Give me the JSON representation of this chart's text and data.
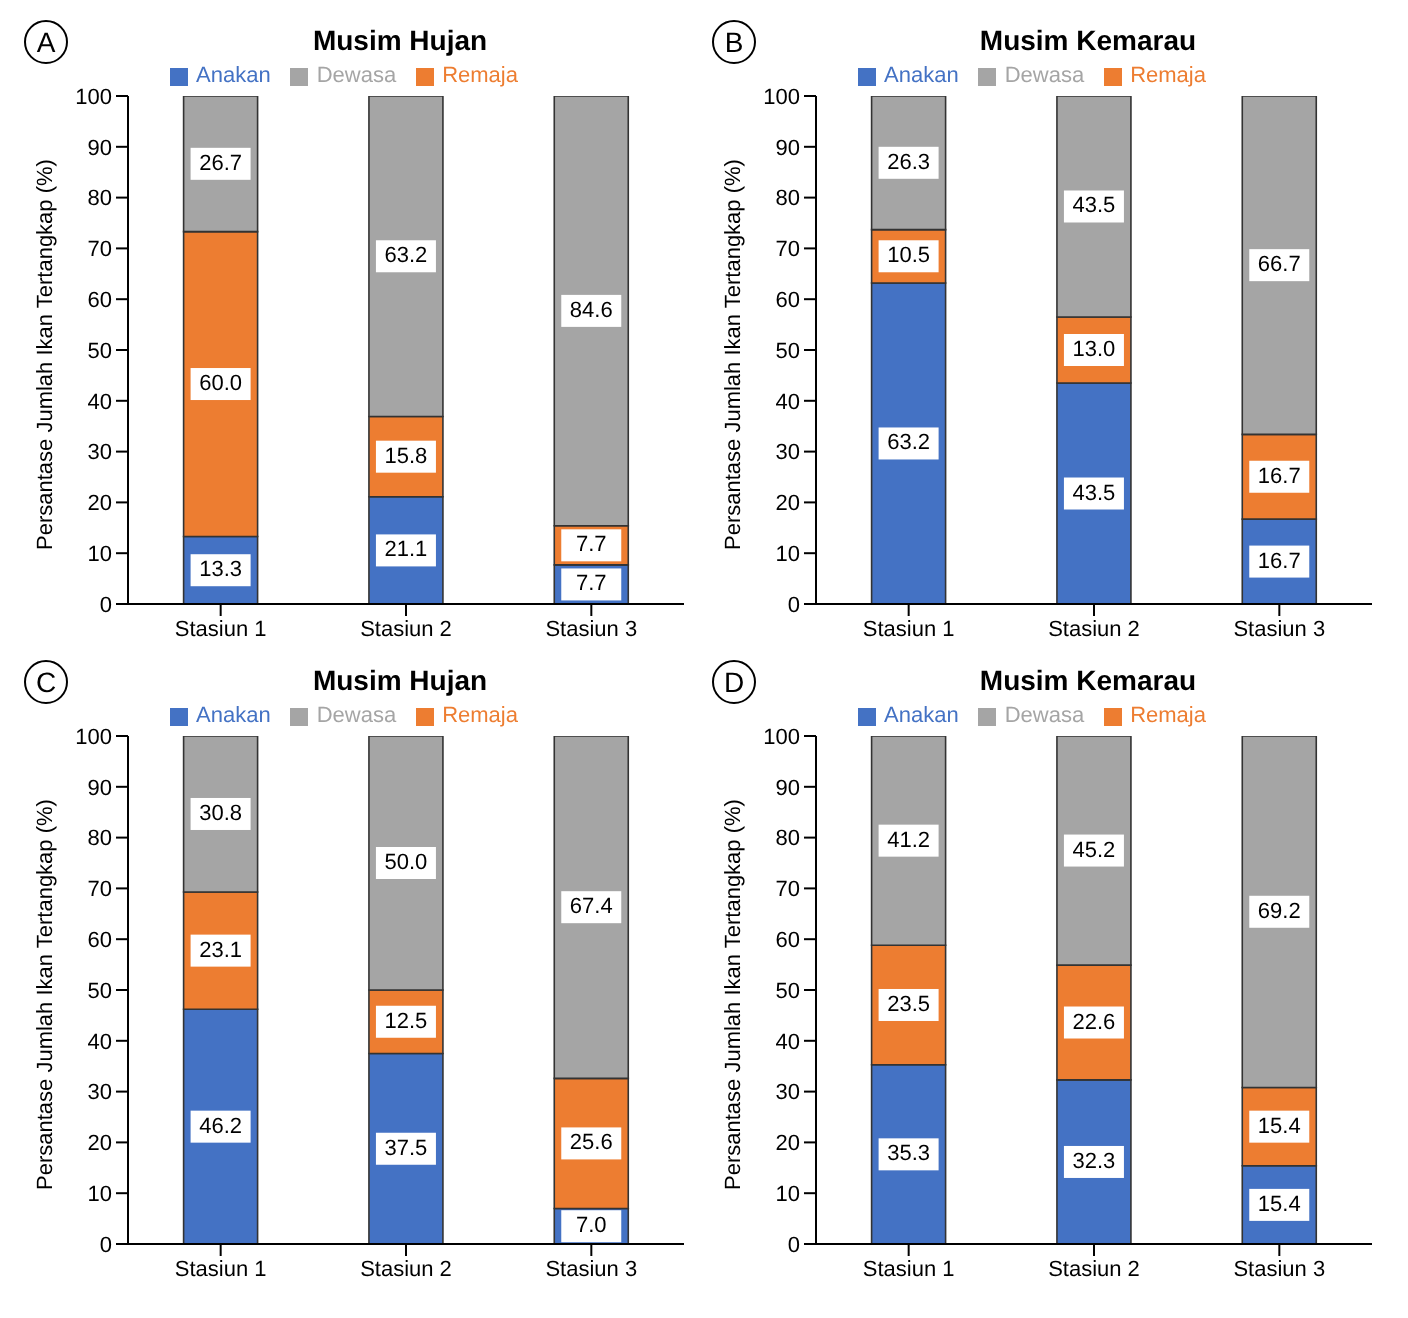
{
  "chart_data": [
    {
      "type": "bar",
      "title": "Musim Hujan",
      "annotations": [
        "A"
      ],
      "ylabel": "Persantase Jumlah Ikan Tertangkap (%)",
      "categories": [
        "Stasiun 1",
        "Stasiun 2",
        "Stasiun 3"
      ],
      "stacked": true,
      "ylim": [
        0,
        100
      ],
      "yticks": [
        0,
        10,
        20,
        30,
        40,
        50,
        60,
        70,
        80,
        90,
        100
      ],
      "legend": "top",
      "series": [
        {
          "name": "Anakan",
          "color": "#4472c4",
          "values": [
            13.3,
            21.1,
            7.7
          ],
          "value_labels": [
            "13.3",
            "21.1",
            "7.7"
          ]
        },
        {
          "name": "Remaja",
          "color": "#ed7d31",
          "values": [
            60.0,
            15.8,
            7.7
          ],
          "value_labels": [
            "60.0",
            "15.8",
            "7.7"
          ]
        },
        {
          "name": "Dewasa",
          "color": "#a5a5a5",
          "values": [
            26.7,
            63.2,
            84.6
          ],
          "value_labels": [
            "26.7",
            "63.2",
            "84.6"
          ]
        }
      ]
    },
    {
      "type": "bar",
      "title": "Musim Kemarau",
      "annotations": [
        "B"
      ],
      "ylabel": "Persantase Jumlah Ikan Tertangkap (%)",
      "categories": [
        "Stasiun 1",
        "Stasiun 2",
        "Stasiun 3"
      ],
      "stacked": true,
      "ylim": [
        0,
        100
      ],
      "yticks": [
        0,
        10,
        20,
        30,
        40,
        50,
        60,
        70,
        80,
        90,
        100
      ],
      "legend": "top",
      "series": [
        {
          "name": "Anakan",
          "color": "#4472c4",
          "values": [
            63.2,
            43.5,
            16.7
          ],
          "value_labels": [
            "63.2",
            "43.5",
            "16.7"
          ]
        },
        {
          "name": "Remaja",
          "color": "#ed7d31",
          "values": [
            10.5,
            13.0,
            16.7
          ],
          "value_labels": [
            "10.5",
            "13.0",
            "16.7"
          ]
        },
        {
          "name": "Dewasa",
          "color": "#a5a5a5",
          "values": [
            26.3,
            43.5,
            66.7
          ],
          "value_labels": [
            "26.3",
            "43.5",
            "66.7"
          ]
        }
      ]
    },
    {
      "type": "bar",
      "title": "Musim Hujan",
      "annotations": [
        "C"
      ],
      "ylabel": "Persantase Jumlah Ikan Tertangkap (%)",
      "categories": [
        "Stasiun 1",
        "Stasiun 2",
        "Stasiun 3"
      ],
      "stacked": true,
      "ylim": [
        0,
        100
      ],
      "yticks": [
        0,
        10,
        20,
        30,
        40,
        50,
        60,
        70,
        80,
        90,
        100
      ],
      "legend": "top",
      "series": [
        {
          "name": "Anakan",
          "color": "#4472c4",
          "values": [
            46.2,
            37.5,
            7.0
          ],
          "value_labels": [
            "46.2",
            "37.5",
            "7.0"
          ]
        },
        {
          "name": "Remaja",
          "color": "#ed7d31",
          "values": [
            23.1,
            12.5,
            25.6
          ],
          "value_labels": [
            "23.1",
            "12.5",
            "25.6"
          ]
        },
        {
          "name": "Dewasa",
          "color": "#a5a5a5",
          "values": [
            30.8,
            50.0,
            67.4
          ],
          "value_labels": [
            "30.8",
            "50.0",
            "67.4"
          ]
        }
      ]
    },
    {
      "type": "bar",
      "title": "Musim Kemarau",
      "annotations": [
        "D"
      ],
      "ylabel": "Persantase Jumlah Ikan Tertangkap (%)",
      "categories": [
        "Stasiun 1",
        "Stasiun 2",
        "Stasiun 3"
      ],
      "stacked": true,
      "ylim": [
        0,
        100
      ],
      "yticks": [
        0,
        10,
        20,
        30,
        40,
        50,
        60,
        70,
        80,
        90,
        100
      ],
      "legend": "top",
      "series": [
        {
          "name": "Anakan",
          "color": "#4472c4",
          "values": [
            35.3,
            32.3,
            15.4
          ],
          "value_labels": [
            "35.3",
            "32.3",
            "15.4"
          ]
        },
        {
          "name": "Remaja",
          "color": "#ed7d31",
          "values": [
            23.5,
            22.6,
            15.4
          ],
          "value_labels": [
            "23.5",
            "22.6",
            "15.4"
          ]
        },
        {
          "name": "Dewasa",
          "color": "#a5a5a5",
          "values": [
            41.2,
            45.2,
            69.2
          ],
          "value_labels": [
            "41.2",
            "45.2",
            "69.2"
          ]
        }
      ]
    }
  ]
}
